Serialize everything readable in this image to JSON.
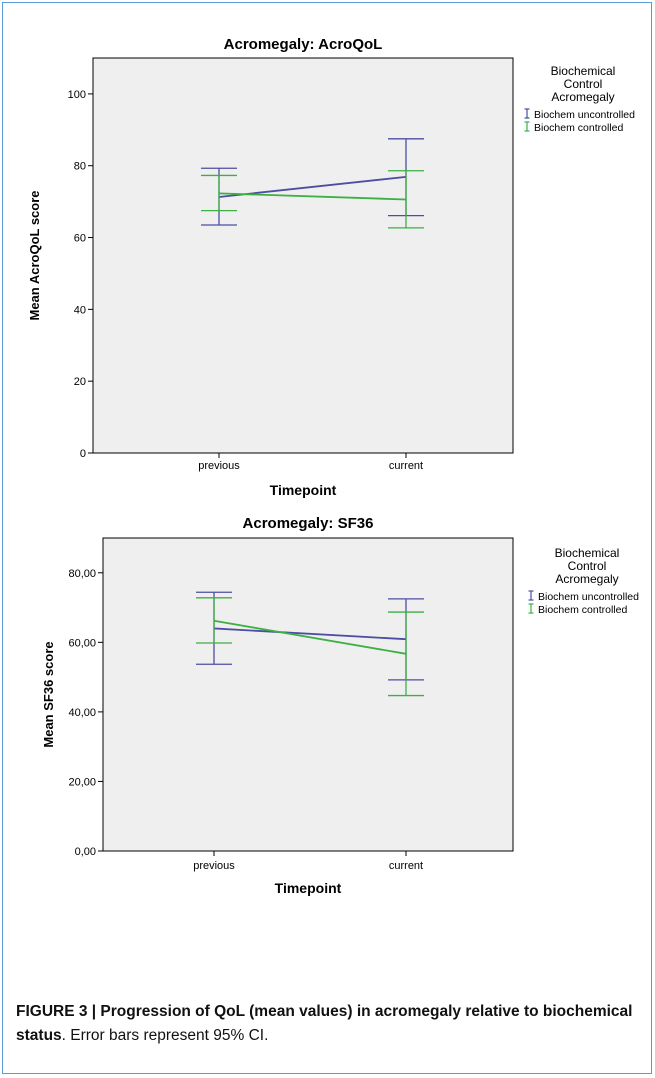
{
  "chart_data": [
    {
      "type": "line",
      "title": "Acromegaly: AcroQoL",
      "xlabel": "Timepoint",
      "ylabel": "Mean AcroQoL score",
      "categories": [
        "previous",
        "current"
      ],
      "ylim": [
        0,
        110
      ],
      "yticks": [
        0,
        20,
        40,
        60,
        80,
        100
      ],
      "ytick_labels": [
        "0",
        "20",
        "40",
        "60",
        "80",
        "100"
      ],
      "legend_title": [
        "Biochemical",
        "Control",
        "Acromegaly"
      ],
      "legend_position": "right",
      "plot_bg": "#efefef",
      "series": [
        {
          "name": "Biochem uncontrolled",
          "color": "#4b4ea3",
          "values": [
            71.3,
            76.9
          ],
          "ci_low": [
            63.5,
            66.1
          ],
          "ci_high": [
            79.3,
            87.5
          ]
        },
        {
          "name": "Biochem controlled",
          "color": "#3cb043",
          "values": [
            72.3,
            70.6
          ],
          "ci_low": [
            67.5,
            62.7
          ],
          "ci_high": [
            77.3,
            78.6
          ]
        }
      ]
    },
    {
      "type": "line",
      "title": "Acromegaly: SF36",
      "xlabel": "Timepoint",
      "ylabel": "Mean SF36 score",
      "categories": [
        "previous",
        "current"
      ],
      "ylim": [
        0,
        90
      ],
      "yticks": [
        0,
        20,
        40,
        60,
        80
      ],
      "ytick_labels": [
        "0,00",
        "20,00",
        "40,00",
        "60,00",
        "80,00"
      ],
      "legend_title": [
        "Biochemical",
        "Control",
        "Acromegaly"
      ],
      "legend_position": "right",
      "plot_bg": "#efefef",
      "series": [
        {
          "name": "Biochem uncontrolled",
          "color": "#4b4ea3",
          "values": [
            64.0,
            60.9
          ],
          "ci_low": [
            53.7,
            49.2
          ],
          "ci_high": [
            74.4,
            72.5
          ]
        },
        {
          "name": "Biochem controlled",
          "color": "#3cb043",
          "values": [
            66.2,
            56.7
          ],
          "ci_low": [
            59.8,
            44.7
          ],
          "ci_high": [
            72.8,
            68.7
          ]
        }
      ]
    }
  ],
  "caption": {
    "bold_text": "FIGURE 3 | Progression of QoL (mean values) in acromegaly relative to biochemical status",
    "normal_text": ". Error bars represent 95% CI."
  }
}
